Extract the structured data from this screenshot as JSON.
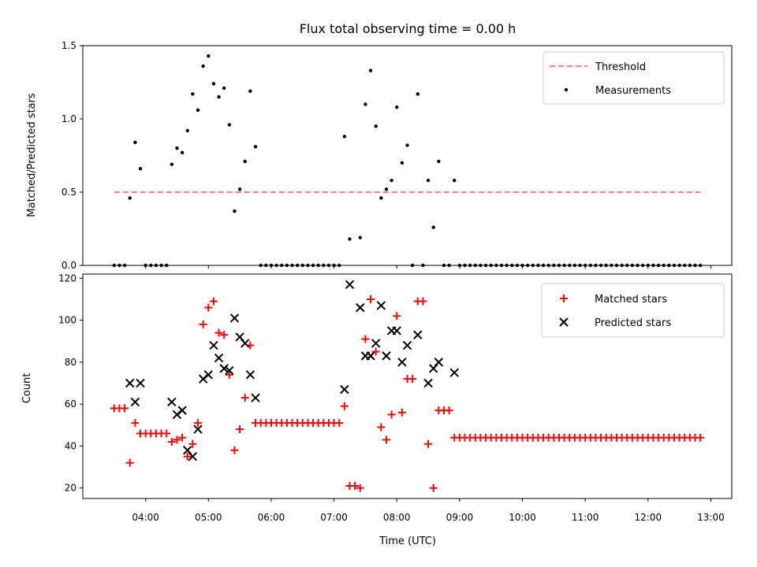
{
  "chart_data": [
    {
      "type": "scatter",
      "title": "Flux total observing time = 0.00 h",
      "ylabel": "Matched/Predicted stars",
      "xlim": [
        "03:00",
        "13:20"
      ],
      "ylim": [
        0,
        1.5
      ],
      "yticks": [
        "0.0",
        "0.5",
        "1.0",
        "1.5"
      ],
      "legend": {
        "placement": "top-right"
      },
      "threshold": {
        "name": "Threshold",
        "value": 0.5,
        "x_start": "03:30",
        "x_end": "12:50",
        "color": "#ff7f7f"
      },
      "series": [
        {
          "name": "Measurements",
          "color": "#000000",
          "points": [
            [
              "03:30",
              0
            ],
            [
              "03:35",
              0
            ],
            [
              "03:40",
              0
            ],
            [
              "03:45",
              0.46
            ],
            [
              "03:50",
              0.84
            ],
            [
              "03:55",
              0.66
            ],
            [
              "04:00",
              0
            ],
            [
              "04:05",
              0
            ],
            [
              "04:10",
              0
            ],
            [
              "04:15",
              0
            ],
            [
              "04:20",
              0
            ],
            [
              "04:25",
              0.69
            ],
            [
              "04:30",
              0.8
            ],
            [
              "04:35",
              0.77
            ],
            [
              "04:40",
              0.92
            ],
            [
              "04:45",
              1.17
            ],
            [
              "04:50",
              1.06
            ],
            [
              "04:55",
              1.36
            ],
            [
              "05:00",
              1.43
            ],
            [
              "05:05",
              1.24
            ],
            [
              "05:10",
              1.15
            ],
            [
              "05:15",
              1.21
            ],
            [
              "05:20",
              0.96
            ],
            [
              "05:25",
              0.37
            ],
            [
              "05:30",
              0.52
            ],
            [
              "05:35",
              0.71
            ],
            [
              "05:40",
              1.19
            ],
            [
              "05:45",
              0.81
            ],
            [
              "05:50",
              0
            ],
            [
              "05:55",
              0
            ],
            [
              "06:00",
              0
            ],
            [
              "06:05",
              0
            ],
            [
              "06:10",
              0
            ],
            [
              "06:15",
              0
            ],
            [
              "06:20",
              0
            ],
            [
              "06:25",
              0
            ],
            [
              "06:30",
              0
            ],
            [
              "06:35",
              0
            ],
            [
              "06:40",
              0
            ],
            [
              "06:45",
              0
            ],
            [
              "06:50",
              0
            ],
            [
              "06:55",
              0
            ],
            [
              "07:00",
              0
            ],
            [
              "07:05",
              0
            ],
            [
              "07:10",
              0.88
            ],
            [
              "07:15",
              0.18
            ],
            [
              "07:25",
              0.19
            ],
            [
              "07:30",
              1.1
            ],
            [
              "07:35",
              1.33
            ],
            [
              "07:40",
              0.95
            ],
            [
              "07:45",
              0.46
            ],
            [
              "07:50",
              0.52
            ],
            [
              "07:55",
              0.58
            ],
            [
              "08:00",
              1.08
            ],
            [
              "08:05",
              0.7
            ],
            [
              "08:10",
              0.82
            ],
            [
              "08:15",
              0
            ],
            [
              "08:20",
              1.17
            ],
            [
              "08:25",
              0
            ],
            [
              "08:30",
              0.58
            ],
            [
              "08:35",
              0.26
            ],
            [
              "08:40",
              0.71
            ],
            [
              "08:45",
              0
            ],
            [
              "08:50",
              0
            ],
            [
              "08:55",
              0.58
            ],
            [
              "09:00",
              0
            ],
            [
              "09:05",
              0
            ],
            [
              "09:10",
              0
            ],
            [
              "09:15",
              0
            ],
            [
              "09:20",
              0
            ],
            [
              "09:25",
              0
            ],
            [
              "09:30",
              0
            ],
            [
              "09:35",
              0
            ],
            [
              "09:40",
              0
            ],
            [
              "09:45",
              0
            ],
            [
              "09:50",
              0
            ],
            [
              "09:55",
              0
            ],
            [
              "10:00",
              0
            ],
            [
              "10:05",
              0
            ],
            [
              "10:10",
              0
            ],
            [
              "10:15",
              0
            ],
            [
              "10:20",
              0
            ],
            [
              "10:25",
              0
            ],
            [
              "10:30",
              0
            ],
            [
              "10:35",
              0
            ],
            [
              "10:40",
              0
            ],
            [
              "10:45",
              0
            ],
            [
              "10:50",
              0
            ],
            [
              "10:55",
              0
            ],
            [
              "11:00",
              0
            ],
            [
              "11:05",
              0
            ],
            [
              "11:10",
              0
            ],
            [
              "11:15",
              0
            ],
            [
              "11:20",
              0
            ],
            [
              "11:25",
              0
            ],
            [
              "11:30",
              0
            ],
            [
              "11:35",
              0
            ],
            [
              "11:40",
              0
            ],
            [
              "11:45",
              0
            ],
            [
              "11:50",
              0
            ],
            [
              "11:55",
              0
            ],
            [
              "12:00",
              0
            ],
            [
              "12:05",
              0
            ],
            [
              "12:10",
              0
            ],
            [
              "12:15",
              0
            ],
            [
              "12:20",
              0
            ],
            [
              "12:25",
              0
            ],
            [
              "12:30",
              0
            ],
            [
              "12:35",
              0
            ],
            [
              "12:40",
              0
            ],
            [
              "12:45",
              0
            ],
            [
              "12:50",
              0
            ]
          ]
        }
      ]
    },
    {
      "type": "scatter",
      "xlabel": "Time (UTC)",
      "ylabel": "Count",
      "xlim": [
        "03:00",
        "13:20"
      ],
      "ylim": [
        15,
        122
      ],
      "xticks": [
        "04:00",
        "05:00",
        "06:00",
        "07:00",
        "08:00",
        "09:00",
        "10:00",
        "11:00",
        "12:00",
        "13:00"
      ],
      "yticks": [
        "20",
        "40",
        "60",
        "80",
        "100",
        "120"
      ],
      "legend": {
        "placement": "top-right"
      },
      "series": [
        {
          "name": "Matched stars",
          "color": "#ff0000",
          "marker": "plus",
          "points": [
            [
              "03:30",
              58
            ],
            [
              "03:35",
              58
            ],
            [
              "03:40",
              58
            ],
            [
              "03:45",
              32
            ],
            [
              "03:50",
              51
            ],
            [
              "03:55",
              46
            ],
            [
              "04:00",
              46
            ],
            [
              "04:05",
              46
            ],
            [
              "04:10",
              46
            ],
            [
              "04:15",
              46
            ],
            [
              "04:20",
              46
            ],
            [
              "04:25",
              42
            ],
            [
              "04:30",
              43
            ],
            [
              "04:35",
              44
            ],
            [
              "04:40",
              35
            ],
            [
              "04:45",
              41
            ],
            [
              "04:50",
              51
            ],
            [
              "04:55",
              98
            ],
            [
              "05:00",
              106
            ],
            [
              "05:05",
              109
            ],
            [
              "05:10",
              94
            ],
            [
              "05:15",
              93
            ],
            [
              "05:20",
              74
            ],
            [
              "05:25",
              38
            ],
            [
              "05:30",
              48
            ],
            [
              "05:35",
              63
            ],
            [
              "05:40",
              88
            ],
            [
              "05:45",
              51
            ],
            [
              "05:50",
              51
            ],
            [
              "05:55",
              51
            ],
            [
              "06:00",
              51
            ],
            [
              "06:05",
              51
            ],
            [
              "06:10",
              51
            ],
            [
              "06:15",
              51
            ],
            [
              "06:20",
              51
            ],
            [
              "06:25",
              51
            ],
            [
              "06:30",
              51
            ],
            [
              "06:35",
              51
            ],
            [
              "06:40",
              51
            ],
            [
              "06:45",
              51
            ],
            [
              "06:50",
              51
            ],
            [
              "06:55",
              51
            ],
            [
              "07:00",
              51
            ],
            [
              "07:05",
              51
            ],
            [
              "07:10",
              59
            ],
            [
              "07:15",
              21
            ],
            [
              "07:20",
              21
            ],
            [
              "07:25",
              20
            ],
            [
              "07:30",
              91
            ],
            [
              "07:35",
              110
            ],
            [
              "07:40",
              85
            ],
            [
              "07:45",
              49
            ],
            [
              "07:50",
              43
            ],
            [
              "07:55",
              55
            ],
            [
              "08:00",
              102
            ],
            [
              "08:05",
              56
            ],
            [
              "08:10",
              72
            ],
            [
              "08:15",
              72
            ],
            [
              "08:20",
              109
            ],
            [
              "08:25",
              109
            ],
            [
              "08:30",
              41
            ],
            [
              "08:35",
              20
            ],
            [
              "08:40",
              57
            ],
            [
              "08:45",
              57
            ],
            [
              "08:50",
              57
            ],
            [
              "08:55",
              44
            ],
            [
              "09:00",
              44
            ],
            [
              "09:05",
              44
            ],
            [
              "09:10",
              44
            ],
            [
              "09:15",
              44
            ],
            [
              "09:20",
              44
            ],
            [
              "09:25",
              44
            ],
            [
              "09:30",
              44
            ],
            [
              "09:35",
              44
            ],
            [
              "09:40",
              44
            ],
            [
              "09:45",
              44
            ],
            [
              "09:50",
              44
            ],
            [
              "09:55",
              44
            ],
            [
              "10:00",
              44
            ],
            [
              "10:05",
              44
            ],
            [
              "10:10",
              44
            ],
            [
              "10:15",
              44
            ],
            [
              "10:20",
              44
            ],
            [
              "10:25",
              44
            ],
            [
              "10:30",
              44
            ],
            [
              "10:35",
              44
            ],
            [
              "10:40",
              44
            ],
            [
              "10:45",
              44
            ],
            [
              "10:50",
              44
            ],
            [
              "10:55",
              44
            ],
            [
              "11:00",
              44
            ],
            [
              "11:05",
              44
            ],
            [
              "11:10",
              44
            ],
            [
              "11:15",
              44
            ],
            [
              "11:20",
              44
            ],
            [
              "11:25",
              44
            ],
            [
              "11:30",
              44
            ],
            [
              "11:35",
              44
            ],
            [
              "11:40",
              44
            ],
            [
              "11:45",
              44
            ],
            [
              "11:50",
              44
            ],
            [
              "11:55",
              44
            ],
            [
              "12:00",
              44
            ],
            [
              "12:05",
              44
            ],
            [
              "12:10",
              44
            ],
            [
              "12:15",
              44
            ],
            [
              "12:20",
              44
            ],
            [
              "12:25",
              44
            ],
            [
              "12:30",
              44
            ],
            [
              "12:35",
              44
            ],
            [
              "12:40",
              44
            ],
            [
              "12:45",
              44
            ],
            [
              "12:50",
              44
            ]
          ]
        },
        {
          "name": "Predicted stars",
          "color": "#000000",
          "marker": "x",
          "points": [
            [
              "03:45",
              70
            ],
            [
              "03:50",
              61
            ],
            [
              "03:55",
              70
            ],
            [
              "04:25",
              61
            ],
            [
              "04:30",
              55
            ],
            [
              "04:35",
              57
            ],
            [
              "04:40",
              38
            ],
            [
              "04:45",
              35
            ],
            [
              "04:50",
              48
            ],
            [
              "04:55",
              72
            ],
            [
              "05:00",
              74
            ],
            [
              "05:05",
              88
            ],
            [
              "05:10",
              82
            ],
            [
              "05:15",
              77
            ],
            [
              "05:20",
              76
            ],
            [
              "05:25",
              101
            ],
            [
              "05:30",
              92
            ],
            [
              "05:35",
              89
            ],
            [
              "05:40",
              74
            ],
            [
              "05:45",
              63
            ],
            [
              "07:10",
              67
            ],
            [
              "07:15",
              117
            ],
            [
              "07:25",
              106
            ],
            [
              "07:30",
              83
            ],
            [
              "07:35",
              83
            ],
            [
              "07:40",
              89
            ],
            [
              "07:45",
              107
            ],
            [
              "07:50",
              83
            ],
            [
              "07:55",
              95
            ],
            [
              "08:00",
              95
            ],
            [
              "08:05",
              80
            ],
            [
              "08:10",
              88
            ],
            [
              "08:20",
              93
            ],
            [
              "08:30",
              70
            ],
            [
              "08:35",
              77
            ],
            [
              "08:40",
              80
            ],
            [
              "08:55",
              75
            ]
          ]
        }
      ]
    }
  ]
}
